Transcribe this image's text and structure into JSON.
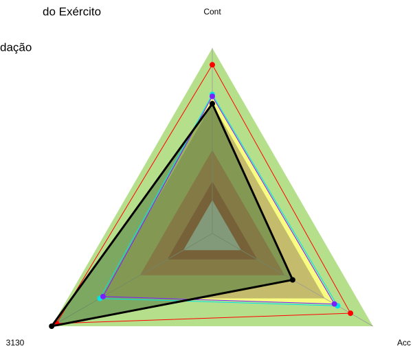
{
  "chart_data": {
    "type": "radar",
    "title": "do Exército",
    "subtitle": "dação",
    "axes": [
      "Cont",
      "Acc",
      "3130"
    ],
    "ylim": [
      0,
      1
    ],
    "series": [
      {
        "color": "#ff0000",
        "values": [
          0.91,
          0.86,
          0.97
        ]
      },
      {
        "color": "#00e5e5",
        "values": [
          0.75,
          0.78,
          0.7
        ]
      },
      {
        "color": "#7a1fff",
        "fill": "#ffff80",
        "values": [
          0.74,
          0.76,
          0.68
        ]
      },
      {
        "color": "#000000",
        "fill": "#4f7a3f",
        "values": [
          0.7,
          0.5,
          1.0
        ]
      }
    ]
  }
}
